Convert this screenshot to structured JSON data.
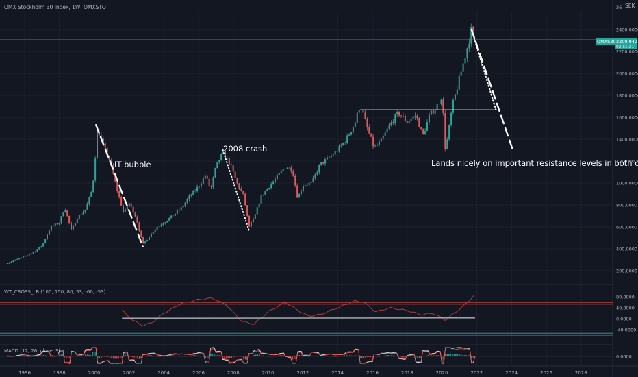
{
  "header": {
    "title": "OMX Stockholm 30 Index, 1W, OMXSTO",
    "currency": "SEK"
  },
  "price_tag": {
    "symbol": "OMXS30",
    "value": "2309.9427",
    "countdown": "02:51:21"
  },
  "colors": {
    "background": "#131722",
    "up": "#26a69a",
    "down": "#ef5350",
    "text": "#b2b5be",
    "annotation": "#ffffff"
  },
  "chart_data": [
    {
      "type": "candlestick",
      "title": "OMX Stockholm 30 Index, 1W, OMXSTO",
      "y_axis_unit": "SEK",
      "x_ticks": [
        "1996",
        "1998",
        "2000",
        "2002",
        "2004",
        "2006",
        "2008",
        "2010",
        "2012",
        "2014",
        "2016",
        "2018",
        "2020",
        "2022",
        "2024",
        "2026",
        "2028"
      ],
      "y_ticks": [
        "200.0000",
        "400.0000",
        "600.0000",
        "800.0000",
        "1000.0000",
        "1200.0000",
        "1400.0000",
        "1600.0000",
        "1800.0000",
        "2000.0000",
        "2200.0000",
        "2400.0000"
      ],
      "ylim": [
        100,
        2650
      ],
      "price_path": [
        [
          1995.0,
          270
        ],
        [
          1995.5,
          300
        ],
        [
          1996.0,
          330
        ],
        [
          1996.5,
          370
        ],
        [
          1997.0,
          430
        ],
        [
          1997.5,
          600
        ],
        [
          1998.0,
          640
        ],
        [
          1998.3,
          780
        ],
        [
          1998.7,
          560
        ],
        [
          1999.0,
          680
        ],
        [
          1999.5,
          760
        ],
        [
          1999.9,
          950
        ],
        [
          2000.2,
          1500
        ],
        [
          2000.5,
          1350
        ],
        [
          2000.9,
          1200
        ],
        [
          2001.3,
          950
        ],
        [
          2001.7,
          720
        ],
        [
          2002.0,
          820
        ],
        [
          2002.4,
          690
        ],
        [
          2002.8,
          440
        ],
        [
          2003.2,
          520
        ],
        [
          2003.6,
          600
        ],
        [
          2004.0,
          640
        ],
        [
          2004.5,
          700
        ],
        [
          2005.0,
          770
        ],
        [
          2005.5,
          880
        ],
        [
          2006.0,
          970
        ],
        [
          2006.4,
          1070
        ],
        [
          2006.7,
          940
        ],
        [
          2007.0,
          1150
        ],
        [
          2007.4,
          1280
        ],
        [
          2007.8,
          1180
        ],
        [
          2008.2,
          1000
        ],
        [
          2008.6,
          880
        ],
        [
          2008.9,
          600
        ],
        [
          2009.2,
          680
        ],
        [
          2009.6,
          880
        ],
        [
          2010.0,
          960
        ],
        [
          2010.5,
          1050
        ],
        [
          2011.0,
          1150
        ],
        [
          2011.4,
          1120
        ],
        [
          2011.7,
          860
        ],
        [
          2012.0,
          980
        ],
        [
          2012.5,
          1000
        ],
        [
          2013.0,
          1170
        ],
        [
          2013.5,
          1230
        ],
        [
          2014.0,
          1300
        ],
        [
          2014.5,
          1400
        ],
        [
          2015.0,
          1550
        ],
        [
          2015.3,
          1720
        ],
        [
          2015.7,
          1500
        ],
        [
          2016.1,
          1320
        ],
        [
          2016.5,
          1380
        ],
        [
          2017.0,
          1530
        ],
        [
          2017.5,
          1640
        ],
        [
          2018.0,
          1560
        ],
        [
          2018.5,
          1620
        ],
        [
          2018.9,
          1430
        ],
        [
          2019.3,
          1620
        ],
        [
          2019.7,
          1700
        ],
        [
          2020.0,
          1800
        ],
        [
          2020.2,
          1290
        ],
        [
          2020.6,
          1700
        ],
        [
          2021.0,
          1950
        ],
        [
          2021.4,
          2200
        ],
        [
          2021.7,
          2400
        ],
        [
          2021.9,
          2309.9427
        ]
      ],
      "annotations": [
        "IT bubble",
        "2008 crash",
        "Lands nicely on important resistance levels in both cases"
      ],
      "levels": [
        1670,
        1290
      ],
      "current_price_line": 2309.9427
    },
    {
      "type": "line",
      "title": "WT_CROSS_LB (100, 150, 80, 53, -60, -53)",
      "y_ticks": [
        "80.0000",
        "40.0000",
        "0.0000",
        "-40.0000"
      ],
      "ylim": [
        -70,
        100
      ],
      "reference_levels": [
        60,
        53,
        -53,
        -60
      ],
      "series": [
        {
          "points": [
            [
              2001.6,
              30
            ],
            [
              2002.2,
              -5
            ],
            [
              2002.8,
              -25
            ],
            [
              2003.3,
              -15
            ],
            [
              2004.0,
              20
            ],
            [
              2005.0,
              55
            ],
            [
              2006.0,
              70
            ],
            [
              2006.8,
              75
            ],
            [
              2007.6,
              50
            ],
            [
              2008.5,
              -10
            ],
            [
              2009.2,
              -20
            ],
            [
              2010.0,
              25
            ],
            [
              2011.0,
              60
            ],
            [
              2011.6,
              35
            ],
            [
              2012.3,
              10
            ],
            [
              2013.0,
              15
            ],
            [
              2014.0,
              40
            ],
            [
              2015.0,
              65
            ],
            [
              2015.5,
              60
            ],
            [
              2016.2,
              25
            ],
            [
              2017.0,
              40
            ],
            [
              2018.0,
              30
            ],
            [
              2018.8,
              15
            ],
            [
              2019.5,
              20
            ],
            [
              2020.2,
              -5
            ],
            [
              2020.8,
              25
            ],
            [
              2021.3,
              50
            ],
            [
              2021.9,
              88
            ]
          ]
        },
        {
          "points": [
            [
              2001.6,
              2
            ],
            [
              2021.9,
              3
            ]
          ]
        }
      ]
    },
    {
      "type": "line",
      "title": "MACD (12, 26, close, 9)",
      "y_ticks": [
        "0.0000"
      ],
      "ylim": [
        -20,
        40
      ]
    }
  ]
}
